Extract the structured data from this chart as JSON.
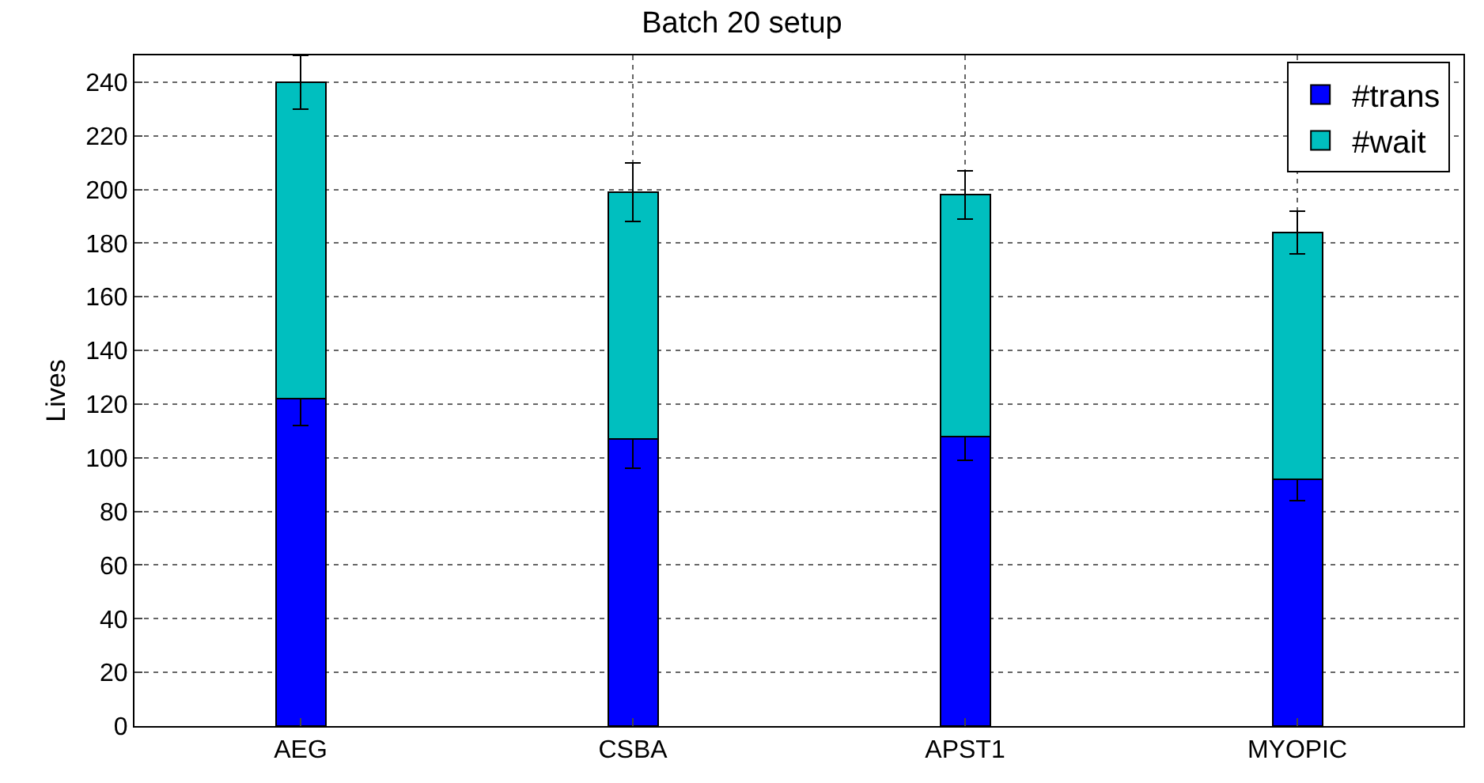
{
  "chart_data": {
    "type": "bar",
    "title": "Batch 20 setup",
    "ylabel": "Lives",
    "categories": [
      "AEG",
      "CSBA",
      "APST1",
      "MYOPIC"
    ],
    "stacked": true,
    "series": [
      {
        "name": "#trans",
        "color": "#0000ff",
        "values": [
          122,
          107,
          108,
          92
        ],
        "errors": [
          10,
          11,
          9,
          8
        ]
      },
      {
        "name": "#wait",
        "color": "#00bfbf",
        "values": [
          118,
          92,
          90,
          92
        ],
        "errors": [
          10,
          11,
          9,
          8
        ]
      }
    ],
    "ylim": [
      0,
      250
    ],
    "yticks": [
      0,
      20,
      40,
      60,
      80,
      100,
      120,
      140,
      160,
      180,
      200,
      220,
      240
    ],
    "grid": true,
    "legend": "top right"
  }
}
